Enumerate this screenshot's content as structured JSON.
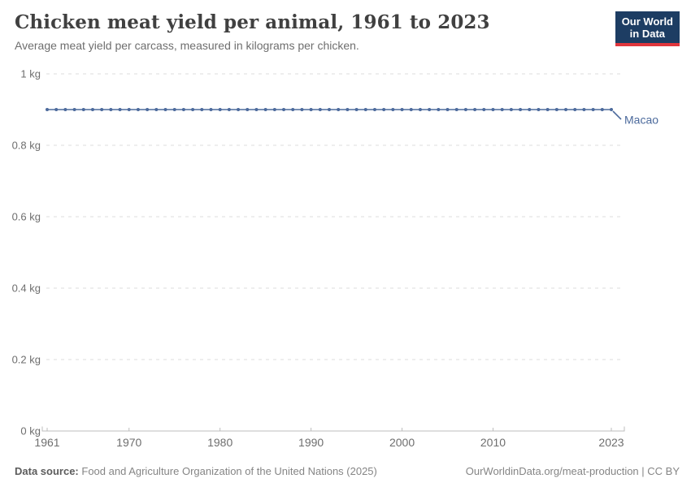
{
  "header": {
    "title": "Chicken meat yield per animal, 1961 to 2023",
    "subtitle": "Average meat yield per carcass, measured in kilograms per chicken.",
    "logo": {
      "line1": "Our World",
      "line2": "in Data"
    }
  },
  "chart_data": {
    "type": "line",
    "title": "Chicken meat yield per animal, 1961 to 2023",
    "subtitle": "Average meat yield per carcass, measured in kilograms per chicken.",
    "xlabel": "",
    "ylabel": "",
    "xlim": [
      1961,
      2023
    ],
    "ylim": [
      0,
      1
    ],
    "grid": "horizontal-dashed",
    "legend_position": "end-of-line-label",
    "marker": "circle",
    "x_ticks": [
      {
        "v": 1961,
        "label": "1961"
      },
      {
        "v": 1970,
        "label": "1970"
      },
      {
        "v": 1980,
        "label": "1980"
      },
      {
        "v": 1990,
        "label": "1990"
      },
      {
        "v": 2000,
        "label": "2000"
      },
      {
        "v": 2010,
        "label": "2010"
      },
      {
        "v": 2023,
        "label": "2023"
      }
    ],
    "y_ticks": [
      {
        "v": 0,
        "label": "0 kg"
      },
      {
        "v": 0.2,
        "label": "0.2 kg"
      },
      {
        "v": 0.4,
        "label": "0.4 kg"
      },
      {
        "v": 0.6,
        "label": "0.6 kg"
      },
      {
        "v": 0.8,
        "label": "0.8 kg"
      },
      {
        "v": 1,
        "label": "1 kg"
      }
    ],
    "series": [
      {
        "name": "Macao",
        "color": "#4c6a9c",
        "x": [
          1961,
          1962,
          1963,
          1964,
          1965,
          1966,
          1967,
          1968,
          1969,
          1970,
          1971,
          1972,
          1973,
          1974,
          1975,
          1976,
          1977,
          1978,
          1979,
          1980,
          1981,
          1982,
          1983,
          1984,
          1985,
          1986,
          1987,
          1988,
          1989,
          1990,
          1991,
          1992,
          1993,
          1994,
          1995,
          1996,
          1997,
          1998,
          1999,
          2000,
          2001,
          2002,
          2003,
          2004,
          2005,
          2006,
          2007,
          2008,
          2009,
          2010,
          2011,
          2012,
          2013,
          2014,
          2015,
          2016,
          2017,
          2018,
          2019,
          2020,
          2021,
          2022,
          2023
        ],
        "values": [
          0.9,
          0.9,
          0.9,
          0.9,
          0.9,
          0.9,
          0.9,
          0.9,
          0.9,
          0.9,
          0.9,
          0.9,
          0.9,
          0.9,
          0.9,
          0.9,
          0.9,
          0.9,
          0.9,
          0.9,
          0.9,
          0.9,
          0.9,
          0.9,
          0.9,
          0.9,
          0.9,
          0.9,
          0.9,
          0.9,
          0.9,
          0.9,
          0.9,
          0.9,
          0.9,
          0.9,
          0.9,
          0.9,
          0.9,
          0.9,
          0.9,
          0.9,
          0.9,
          0.9,
          0.9,
          0.9,
          0.9,
          0.9,
          0.9,
          0.9,
          0.9,
          0.9,
          0.9,
          0.9,
          0.9,
          0.9,
          0.9,
          0.9,
          0.9,
          0.9,
          0.9,
          0.9,
          0.9
        ]
      }
    ]
  },
  "footer": {
    "source_label": "Data source:",
    "source_text": "Food and Agriculture Organization of the United Nations (2025)",
    "link_text": "OurWorldinData.org/meat-production | CC BY"
  },
  "colors": {
    "series": "#4c6a9c",
    "grid": "#dcdcdc",
    "axis": "#bdbdbd",
    "tick_label": "#6e6e6e",
    "logo_bg": "#1d3d63",
    "logo_accent": "#e0363c"
  }
}
